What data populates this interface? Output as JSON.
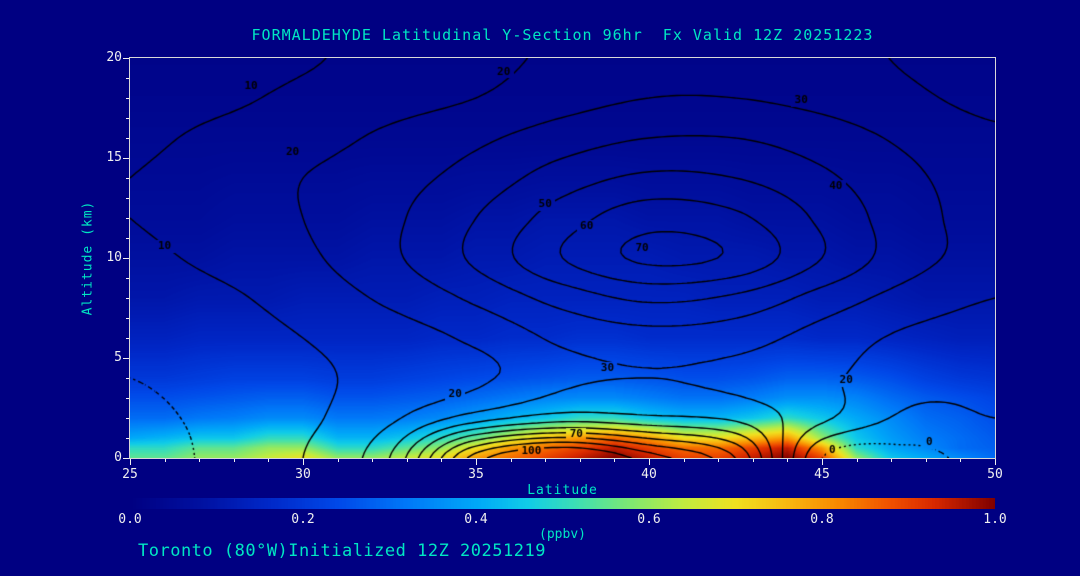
{
  "title": "FORMALDEHYDE Latitudinal Y-Section 96hr  Fx Valid 12Z 20251223",
  "footer": "Toronto (80°W)Initialized 12Z 20251219",
  "colors": {
    "background": "#000082",
    "title_text": "#00E6C3",
    "axis_text": "#F0F0F0",
    "contour_line": "#000000"
  },
  "chart_data": {
    "type": "heatmap",
    "overlay": "contour",
    "title": "FORMALDEHYDE Latitudinal Y-Section 96hr  Fx Valid 12Z 20251223",
    "xlabel": "Latitude",
    "ylabel": "Altitude (km)",
    "xlim": [
      25,
      50
    ],
    "ylim": [
      0,
      20
    ],
    "xticks": [
      25,
      30,
      35,
      40,
      45,
      50
    ],
    "yticks": [
      0,
      5,
      10,
      15,
      20
    ],
    "x_minor_step": 1,
    "y_minor_step": 1,
    "colorbar": {
      "label": "(ppbv)",
      "min": 0.0,
      "max": 1.0,
      "ticks": [
        "0.0",
        "0.2",
        "0.4",
        "0.6",
        "0.8",
        "1.0"
      ],
      "stops": [
        [
          0.0,
          "#000082"
        ],
        [
          0.08,
          "#0010A0"
        ],
        [
          0.16,
          "#0028C8"
        ],
        [
          0.24,
          "#0048E8"
        ],
        [
          0.32,
          "#0078F8"
        ],
        [
          0.4,
          "#00A8F8"
        ],
        [
          0.46,
          "#10CCE8"
        ],
        [
          0.52,
          "#40E0B0"
        ],
        [
          0.58,
          "#80E870"
        ],
        [
          0.64,
          "#C0EC40"
        ],
        [
          0.7,
          "#F0E020"
        ],
        [
          0.76,
          "#F8B810"
        ],
        [
          0.82,
          "#F88800"
        ],
        [
          0.88,
          "#F05000"
        ],
        [
          0.93,
          "#D82800"
        ],
        [
          1.0,
          "#7F0000"
        ]
      ]
    },
    "fill_field": {
      "name": "formaldehyde_ppbv",
      "lats": [
        25,
        26,
        27,
        28,
        29,
        30,
        31,
        32,
        33,
        34,
        35,
        36,
        37,
        38,
        39,
        40,
        41,
        42,
        43,
        44,
        45,
        46,
        47,
        48,
        49,
        50
      ],
      "alts": [
        0,
        0.5,
        1,
        2,
        3,
        4,
        6,
        8,
        10,
        12,
        16,
        20
      ],
      "values": [
        [
          0.55,
          0.55,
          0.6,
          0.6,
          0.65,
          0.7,
          0.6,
          0.6,
          0.65,
          0.7,
          0.8,
          0.85,
          0.9,
          0.95,
          1.0,
          0.95,
          0.9,
          0.9,
          0.95,
          1.0,
          0.9,
          0.6,
          0.45,
          0.4,
          0.35,
          0.3
        ],
        [
          0.5,
          0.5,
          0.55,
          0.55,
          0.6,
          0.6,
          0.5,
          0.5,
          0.55,
          0.6,
          0.7,
          0.8,
          0.85,
          0.9,
          0.95,
          0.9,
          0.85,
          0.85,
          0.9,
          0.95,
          0.8,
          0.5,
          0.4,
          0.35,
          0.3,
          0.28
        ],
        [
          0.4,
          0.42,
          0.45,
          0.45,
          0.5,
          0.5,
          0.42,
          0.42,
          0.45,
          0.5,
          0.55,
          0.65,
          0.75,
          0.8,
          0.85,
          0.8,
          0.7,
          0.7,
          0.75,
          0.8,
          0.6,
          0.45,
          0.38,
          0.33,
          0.3,
          0.27
        ],
        [
          0.3,
          0.3,
          0.32,
          0.33,
          0.35,
          0.35,
          0.32,
          0.32,
          0.33,
          0.35,
          0.38,
          0.42,
          0.45,
          0.5,
          0.5,
          0.45,
          0.42,
          0.42,
          0.45,
          0.5,
          0.45,
          0.4,
          0.35,
          0.3,
          0.28,
          0.25
        ],
        [
          0.25,
          0.25,
          0.26,
          0.27,
          0.28,
          0.28,
          0.26,
          0.26,
          0.27,
          0.28,
          0.3,
          0.32,
          0.34,
          0.35,
          0.35,
          0.33,
          0.31,
          0.31,
          0.33,
          0.36,
          0.36,
          0.34,
          0.3,
          0.27,
          0.25,
          0.23
        ],
        [
          0.2,
          0.2,
          0.21,
          0.22,
          0.22,
          0.22,
          0.21,
          0.21,
          0.22,
          0.23,
          0.24,
          0.25,
          0.26,
          0.27,
          0.27,
          0.26,
          0.25,
          0.25,
          0.26,
          0.28,
          0.28,
          0.27,
          0.25,
          0.22,
          0.2,
          0.19
        ],
        [
          0.14,
          0.14,
          0.15,
          0.15,
          0.15,
          0.15,
          0.15,
          0.15,
          0.15,
          0.16,
          0.16,
          0.17,
          0.17,
          0.18,
          0.18,
          0.17,
          0.17,
          0.17,
          0.17,
          0.17,
          0.16,
          0.16,
          0.15,
          0.14,
          0.13,
          0.13
        ],
        [
          0.1,
          0.1,
          0.11,
          0.11,
          0.11,
          0.12,
          0.12,
          0.12,
          0.12,
          0.13,
          0.13,
          0.14,
          0.14,
          0.14,
          0.14,
          0.14,
          0.14,
          0.13,
          0.13,
          0.13,
          0.12,
          0.12,
          0.11,
          0.1,
          0.1,
          0.1
        ],
        [
          0.08,
          0.08,
          0.08,
          0.09,
          0.09,
          0.09,
          0.09,
          0.1,
          0.1,
          0.1,
          0.11,
          0.11,
          0.12,
          0.12,
          0.12,
          0.12,
          0.11,
          0.11,
          0.11,
          0.1,
          0.1,
          0.09,
          0.09,
          0.08,
          0.08,
          0.08
        ],
        [
          0.06,
          0.06,
          0.06,
          0.07,
          0.07,
          0.07,
          0.07,
          0.08,
          0.08,
          0.08,
          0.09,
          0.09,
          0.1,
          0.1,
          0.1,
          0.09,
          0.09,
          0.09,
          0.08,
          0.08,
          0.08,
          0.07,
          0.07,
          0.06,
          0.06,
          0.06
        ],
        [
          0.04,
          0.04,
          0.04,
          0.04,
          0.04,
          0.04,
          0.04,
          0.04,
          0.04,
          0.04,
          0.04,
          0.04,
          0.04,
          0.04,
          0.04,
          0.04,
          0.04,
          0.04,
          0.04,
          0.04,
          0.04,
          0.04,
          0.04,
          0.04,
          0.04,
          0.04
        ],
        [
          0.02,
          0.02,
          0.02,
          0.02,
          0.02,
          0.02,
          0.02,
          0.02,
          0.02,
          0.02,
          0.02,
          0.02,
          0.02,
          0.02,
          0.02,
          0.02,
          0.02,
          0.02,
          0.02,
          0.02,
          0.02,
          0.02,
          0.02,
          0.02,
          0.02,
          0.02
        ]
      ]
    },
    "contour_field": {
      "lats": [
        25,
        27.5,
        30,
        32.5,
        35,
        37.5,
        40,
        42.5,
        45,
        47.5,
        50
      ],
      "alts": [
        0,
        2,
        4,
        6,
        8,
        10,
        12,
        14,
        16,
        18,
        20
      ],
      "values": [
        [
          -5,
          2,
          10,
          30,
          95,
          115,
          95,
          70,
          0,
          -3,
          4
        ],
        [
          -2,
          2,
          8,
          18,
          35,
          45,
          42,
          38,
          22,
          8,
          10
        ],
        [
          0,
          3,
          8,
          13,
          18,
          28,
          30,
          28,
          22,
          14,
          12
        ],
        [
          2,
          5,
          10,
          15,
          22,
          32,
          36,
          34,
          26,
          18,
          15
        ],
        [
          5,
          8,
          14,
          22,
          32,
          44,
          52,
          48,
          36,
          26,
          20
        ],
        [
          8,
          12,
          18,
          28,
          42,
          60,
          72,
          68,
          50,
          34,
          26
        ],
        [
          10,
          14,
          20,
          28,
          40,
          55,
          66,
          62,
          48,
          34,
          26
        ],
        [
          10,
          14,
          20,
          26,
          34,
          45,
          52,
          50,
          42,
          32,
          25
        ],
        [
          8,
          12,
          16,
          22,
          28,
          35,
          40,
          40,
          35,
          28,
          22
        ],
        [
          5,
          8,
          12,
          16,
          20,
          26,
          30,
          30,
          27,
          22,
          17
        ],
        [
          3,
          6,
          9,
          13,
          17,
          22,
          26,
          26,
          23,
          19,
          14
        ]
      ],
      "levels_solid": [
        10,
        20,
        30,
        40,
        50,
        60,
        70,
        80,
        90,
        100
      ],
      "levels_dotted": [
        0
      ],
      "labels": [
        {
          "text": "10",
          "lat": 28.5,
          "alt": 18.6
        },
        {
          "text": "20",
          "lat": 35.8,
          "alt": 19.3
        },
        {
          "text": "30",
          "lat": 44.4,
          "alt": 17.9
        },
        {
          "text": "20",
          "lat": 29.7,
          "alt": 15.3
        },
        {
          "text": "40",
          "lat": 45.4,
          "alt": 13.6
        },
        {
          "text": "50",
          "lat": 37.0,
          "alt": 12.7
        },
        {
          "text": "60",
          "lat": 38.2,
          "alt": 11.6
        },
        {
          "text": "70",
          "lat": 39.8,
          "alt": 10.5
        },
        {
          "text": "10",
          "lat": 26.0,
          "alt": 10.6
        },
        {
          "text": "30",
          "lat": 38.8,
          "alt": 4.5
        },
        {
          "text": "20",
          "lat": 34.4,
          "alt": 3.2
        },
        {
          "text": "20",
          "lat": 45.7,
          "alt": 3.9
        },
        {
          "text": "100",
          "lat": 36.6,
          "alt": 0.35
        },
        {
          "text": "70",
          "lat": 37.9,
          "alt": 1.2
        },
        {
          "text": "0",
          "lat": 45.3,
          "alt": 0.4
        },
        {
          "text": "0",
          "lat": 48.1,
          "alt": 0.8
        }
      ]
    }
  }
}
